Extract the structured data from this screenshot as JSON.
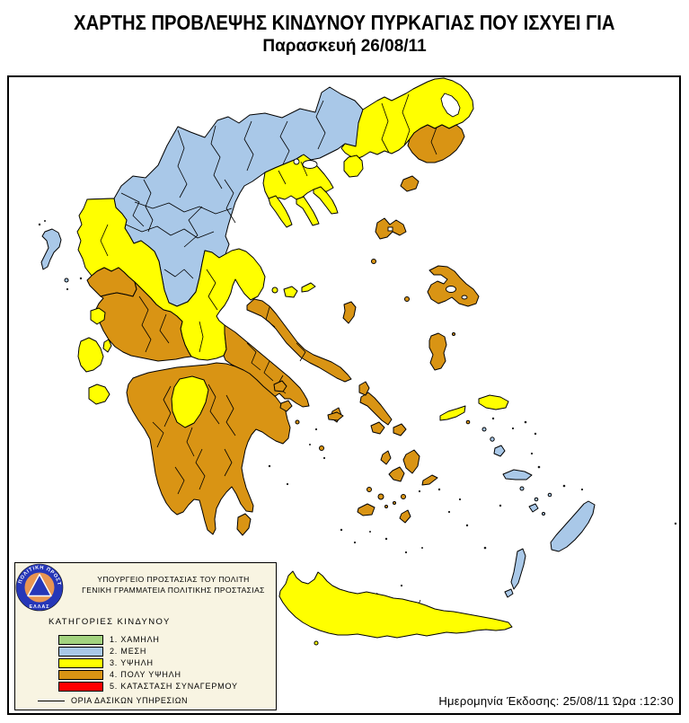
{
  "title": "ΧΑΡΤΗΣ ΠΡΟΒΛΕΨΗΣ ΚΙΝΔΥΝΟΥ ΠΥΡΚΑΓΙΑΣ ΠΟΥ ΙΣΧΥΕΙ ΓΙΑ",
  "subtitle": "Παρασκευή 26/08/11",
  "issue_info": "Ημερομηνία Έκδοσης: 25/08/11  Ώρα :12:30",
  "palette": {
    "cat1": "#A3D37F",
    "cat2": "#A9C8E8",
    "cat3": "#FFFF00",
    "cat4": "#D99414",
    "cat5": "#FF0000",
    "sea": "#FFFFFF",
    "legend_background": "#F8F4E2",
    "logo_ring": "#2637B8",
    "logo_disc": "#E89552"
  },
  "legend": {
    "org_line1": "ΥΠΟΥΡΓΕΙΟ ΠΡΟΣΤΑΣΙΑΣ ΤΟΥ ΠΟΛΙΤΗ",
    "org_line2": "ΓΕΝΙΚΗ ΓΡΑΜΜΑΤΕΙΑ ΠΟΛΙΤΙΚΗΣ ΠΡΟΣΤΑΣΙΑΣ",
    "categories_title": "ΚΑΤΗΓΟΡΙΕΣ ΚΙΝΔΥΝΟΥ",
    "items": [
      {
        "label": "1. ΧΑΜΗΛΗ",
        "color_key": "cat1"
      },
      {
        "label": "2. ΜΕΣΗ",
        "color_key": "cat2"
      },
      {
        "label": "3. ΥΨΗΛΗ",
        "color_key": "cat3"
      },
      {
        "label": "4. ΠΟΛΥ ΥΨΗΛΗ",
        "color_key": "cat4"
      },
      {
        "label": "5. ΚΑΤΑΣΤΑΣΗ ΣΥΝΑΓΕΡΜΟΥ",
        "color_key": "cat5"
      }
    ],
    "boundaries_label": "ΟΡΙΑ ΔΑΣΙΚΩΝ ΥΠΗΡΕΣΙΩΝ",
    "logo": {
      "ring_text_top": "ΠΟΛΙΤΙΚΗ ΠΡΟΣΤΑΣΙΑ",
      "ring_text_bottom": "ΕΛΛΑΣ"
    }
  },
  "map": {
    "areas": [
      {
        "area": "northern-mainland",
        "risk_category": 2
      },
      {
        "area": "thrace",
        "risk_category": 3
      },
      {
        "area": "rhodopi-evros-district",
        "risk_category": 4
      },
      {
        "area": "chalkidiki",
        "risk_category": 3
      },
      {
        "area": "epirus-coast-central-band",
        "risk_category": 3
      },
      {
        "area": "preveza-arta",
        "risk_category": 4
      },
      {
        "area": "aetolia-acarnania",
        "risk_category": 4
      },
      {
        "area": "boeotia-attica",
        "risk_category": 4
      },
      {
        "area": "euboea",
        "risk_category": 4
      },
      {
        "area": "peloponnese",
        "risk_category": 4
      },
      {
        "area": "achaia-kalavryta-patch",
        "risk_category": 3
      },
      {
        "area": "corfu",
        "risk_category": 2
      },
      {
        "area": "ionian-islands",
        "risk_category": 3
      },
      {
        "area": "sporades",
        "risk_category": 3
      },
      {
        "area": "thasos",
        "risk_category": 3
      },
      {
        "area": "ne-aegean-islands",
        "risk_category": 4
      },
      {
        "area": "samos-ikaria",
        "risk_category": 3
      },
      {
        "area": "cyclades",
        "risk_category": 4
      },
      {
        "area": "dodecanese",
        "risk_category": 2
      },
      {
        "area": "crete",
        "risk_category": 3
      },
      {
        "area": "kythira",
        "risk_category": 4
      }
    ]
  }
}
